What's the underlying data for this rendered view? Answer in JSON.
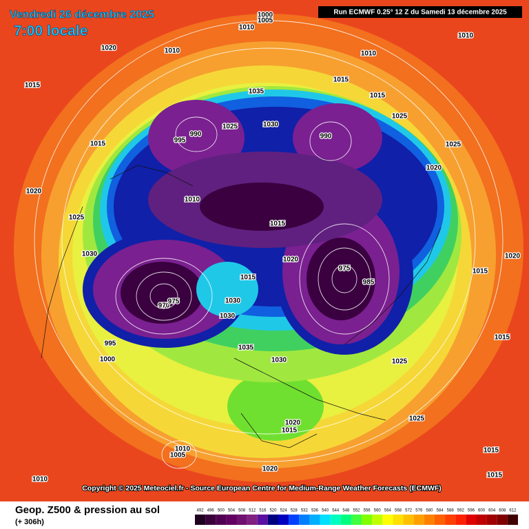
{
  "header": {
    "date": "Vendredi 26 décembre 2025",
    "time": "7:00 locale",
    "run": "Run ECMWF 0.25° 12 Z du Samedi 13 décembre 2025"
  },
  "copyright": "Copyright © 2025 Meteociel.fr - Source European Centre for Medium-Range Weather Forecasts (ECMWF)",
  "footer": {
    "title": "Geop. Z500 & pression au sol",
    "lead": "(+ 306h)"
  },
  "isobar_labels": [
    1000,
    1005,
    1010,
    1010,
    1020,
    1010,
    1010,
    1015,
    1015,
    1035,
    1015,
    990,
    995,
    1025,
    1030,
    990,
    1015,
    1025,
    1025,
    1020,
    1010,
    1015,
    1020,
    1030,
    975,
    985,
    970,
    975,
    1015,
    1030,
    1030,
    1035,
    1030,
    1025,
    1000,
    995,
    1020,
    1015,
    1010,
    1005,
    1020,
    1010,
    1015,
    1015,
    1025,
    1020,
    1025,
    1015,
    1015,
    1020
  ],
  "scale": {
    "values": [
      492,
      496,
      500,
      504,
      508,
      512,
      516,
      520,
      524,
      528,
      532,
      536,
      540,
      544,
      548,
      552,
      556,
      560,
      564,
      568,
      572,
      576,
      580,
      584,
      588,
      592,
      596,
      600,
      604,
      608,
      612
    ],
    "colors": [
      "#200020",
      "#3a003a",
      "#500050",
      "#620062",
      "#701070",
      "#802080",
      "#5a10a0",
      "#000080",
      "#0000c0",
      "#0040ff",
      "#0080ff",
      "#00b0ff",
      "#00e0ff",
      "#00ffc0",
      "#00ff80",
      "#40ff40",
      "#80ff00",
      "#c0ff00",
      "#ffff00",
      "#ffe000",
      "#ffc000",
      "#ffa000",
      "#ff8000",
      "#ff6000",
      "#ff4000",
      "#ff2000",
      "#e00000",
      "#c00000",
      "#a00000",
      "#800000",
      "#400000"
    ]
  }
}
